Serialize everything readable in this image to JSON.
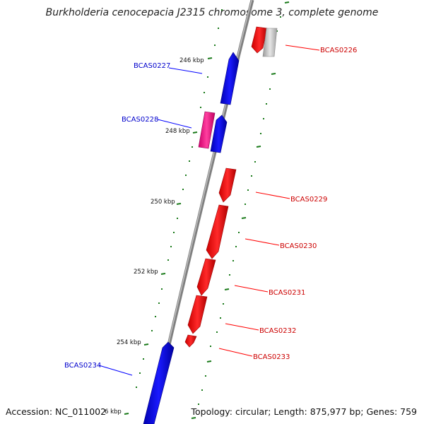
{
  "title": "Burkholderia cenocepacia J2315 chromosome 3, complete genome",
  "accession": "Accession: NC_011002",
  "stats": "Topology: circular; Length: 875,977 bp; Genes: 759",
  "colors": {
    "forward_gene": "#ff0000",
    "reverse_gene": "#0000ff",
    "pink_gene": "#ff1493",
    "grey_gene": "#b0b0b0",
    "backbone": "#808080",
    "tick": "#006400",
    "forward_label": "#cc0000",
    "reverse_label": "#0000cc"
  },
  "scale_labels": [
    "246 kbp",
    "248 kbp",
    "250 kbp",
    "252 kbp",
    "254 kbp",
    "6 kbp"
  ],
  "genes": [
    {
      "label": "BCAS0226",
      "strand": "forward",
      "color": "red"
    },
    {
      "label": "BCAS0227",
      "strand": "reverse",
      "color": "blue"
    },
    {
      "label": "BCAS0228",
      "strand": "reverse",
      "color": "pink"
    },
    {
      "label": "BCAS0229",
      "strand": "forward",
      "color": "red"
    },
    {
      "label": "BCAS0230",
      "strand": "forward",
      "color": "red"
    },
    {
      "label": "BCAS0231",
      "strand": "forward",
      "color": "red"
    },
    {
      "label": "BCAS0232",
      "strand": "forward",
      "color": "red"
    },
    {
      "label": "BCAS0233",
      "strand": "forward",
      "color": "red"
    },
    {
      "label": "BCAS0234",
      "strand": "reverse",
      "color": "blue"
    }
  ]
}
